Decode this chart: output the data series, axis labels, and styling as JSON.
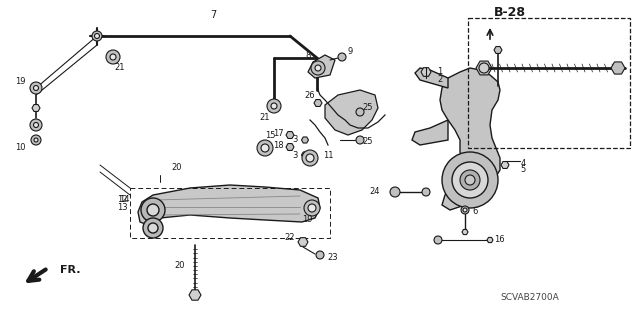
{
  "bg_color": "#ffffff",
  "line_color": "#1a1a1a",
  "diagram_code": "SCVAB2700A",
  "ref_label": "B-28",
  "direction_label": "FR."
}
